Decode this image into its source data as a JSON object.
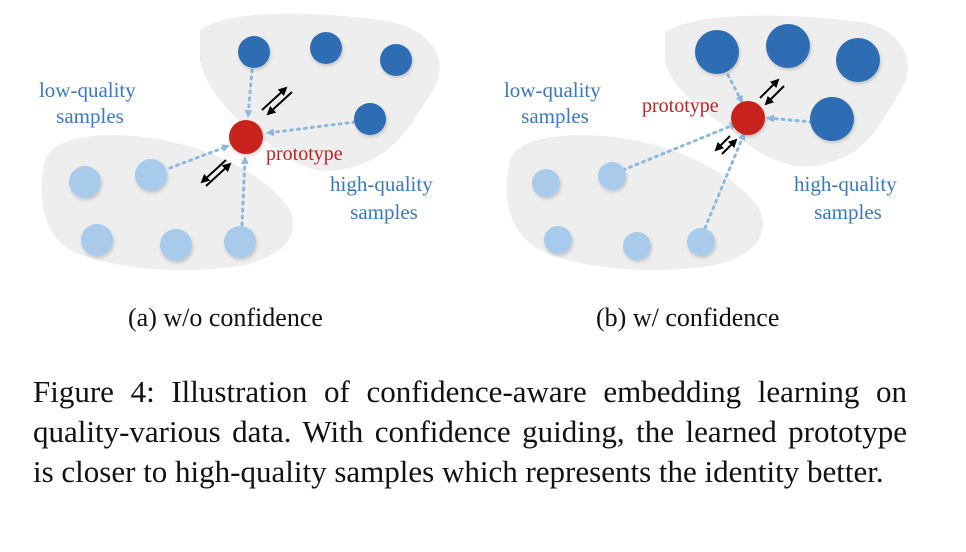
{
  "panel_a": {
    "low_quality_label": [
      "low-quality",
      "samples"
    ],
    "high_quality_label": [
      "high-quality",
      "samples"
    ],
    "prototype_label": "prototype",
    "subcaption": "(a) w/o confidence"
  },
  "panel_b": {
    "low_quality_label": [
      "low-quality",
      "samples"
    ],
    "high_quality_label": [
      "high-quality",
      "samples"
    ],
    "prototype_label": "prototype",
    "subcaption": "(b) w/ confidence"
  },
  "caption": "Figure 4: Illustration of confidence-aware embedding learning on quality-various data. With confidence guiding, the learned prototype is closer to high-quality samples which represents the identity better.",
  "colors": {
    "high_quality": "#2e6db4",
    "low_quality": "#a8cbec",
    "prototype": "#c8201e",
    "blob": "#eeeeee",
    "label_blue": "#3a78c0",
    "label_red": "#c42020"
  }
}
